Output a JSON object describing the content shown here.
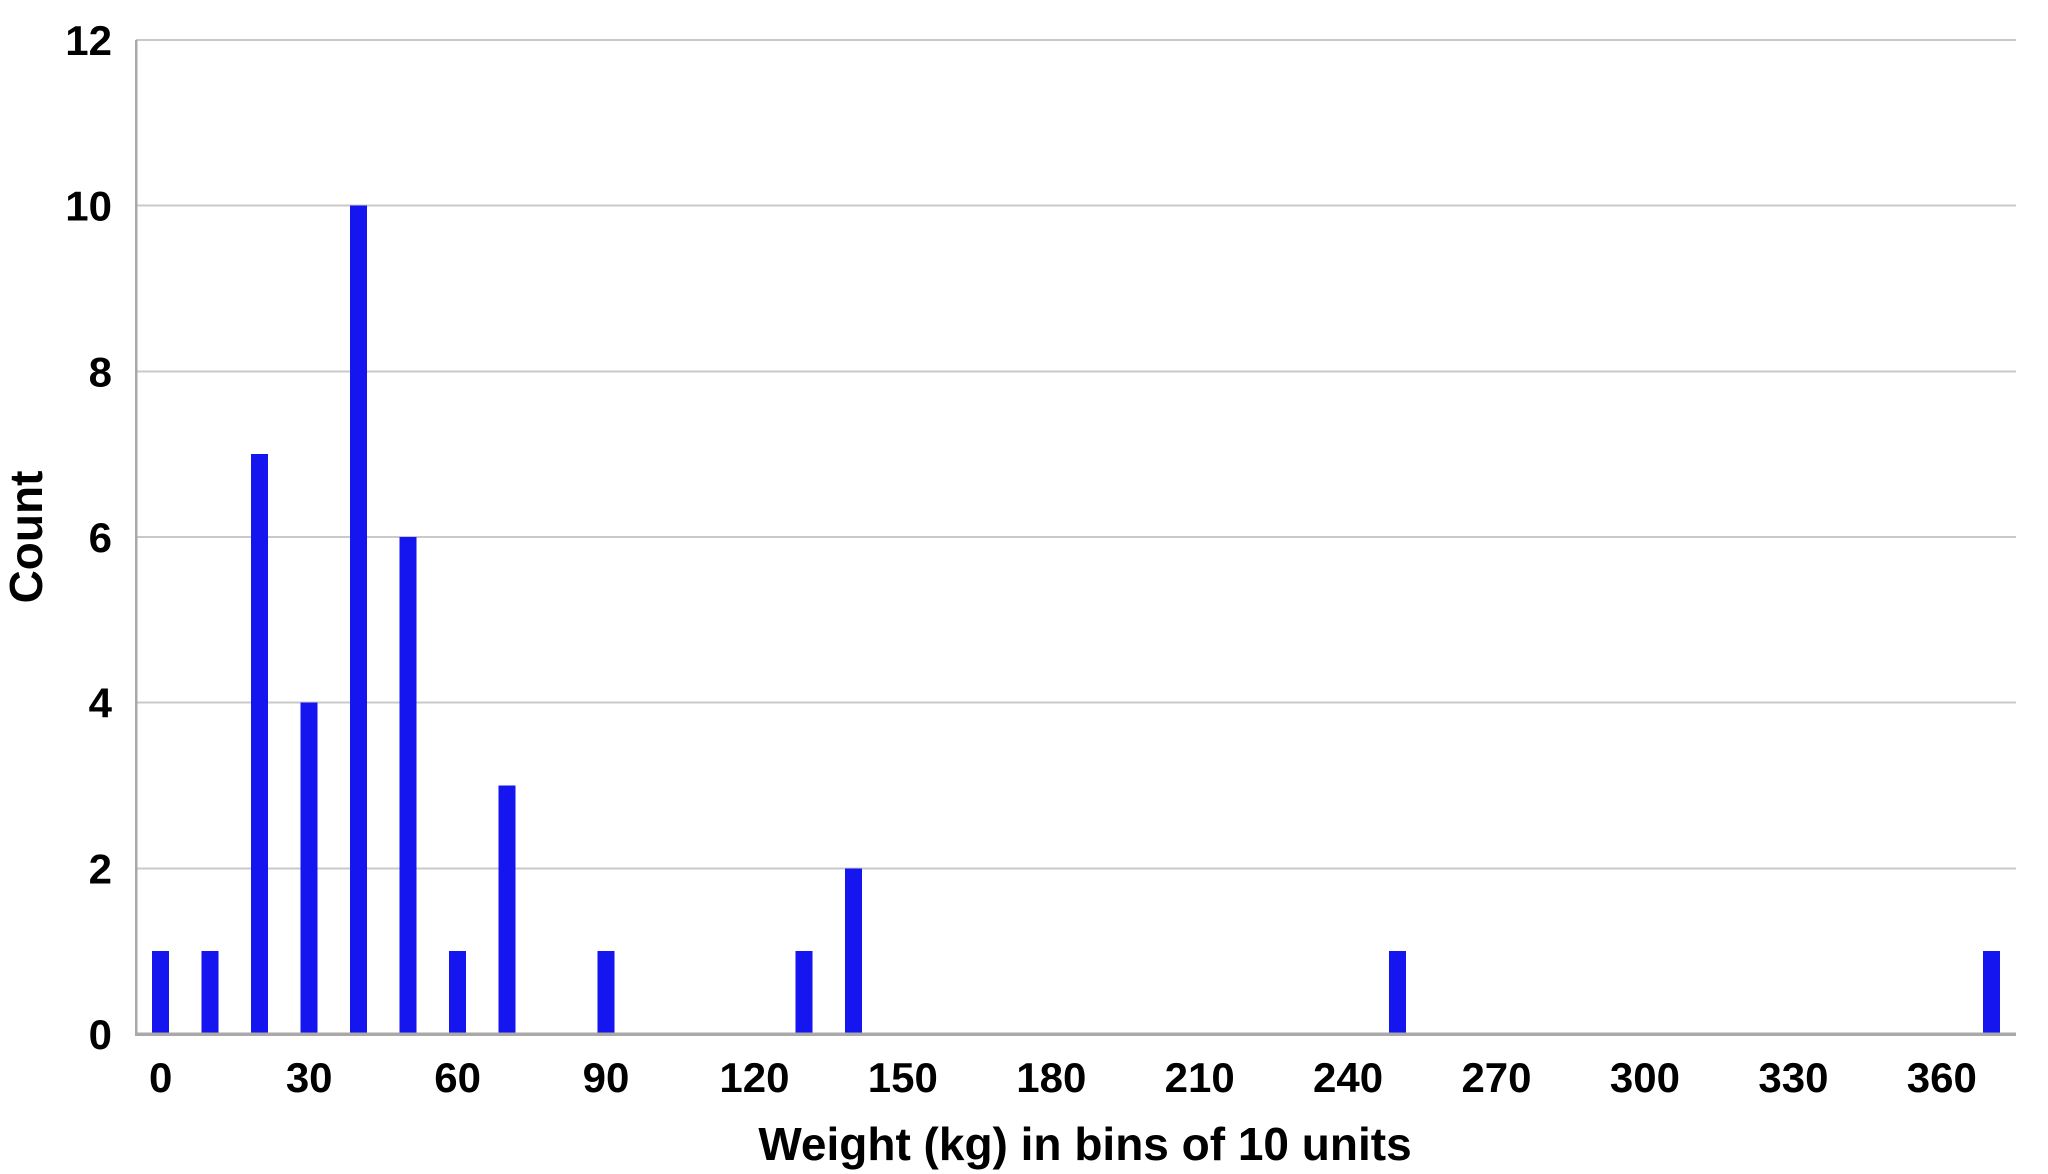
{
  "chart_data": {
    "type": "bar",
    "title": "",
    "xlabel": "Weight (kg) in bins of 10 units",
    "ylabel": "Count",
    "bin_width": 10,
    "bins": [
      0,
      10,
      20,
      30,
      40,
      50,
      60,
      70,
      80,
      90,
      100,
      110,
      120,
      130,
      140,
      150,
      160,
      170,
      180,
      190,
      200,
      210,
      220,
      230,
      240,
      250,
      260,
      270,
      280,
      290,
      300,
      310,
      320,
      330,
      340,
      350,
      360,
      370
    ],
    "counts": [
      1,
      1,
      7,
      4,
      10,
      6,
      1,
      3,
      0,
      1,
      0,
      0,
      0,
      1,
      2,
      0,
      0,
      0,
      0,
      0,
      0,
      0,
      0,
      0,
      0,
      1,
      0,
      0,
      0,
      0,
      0,
      0,
      0,
      0,
      0,
      0,
      0,
      1
    ],
    "x_tick_labels": [
      "0",
      "30",
      "60",
      "90",
      "120",
      "150",
      "180",
      "210",
      "240",
      "270",
      "300",
      "330",
      "360"
    ],
    "x_tick_interval": 30,
    "y_tick_labels": [
      "0",
      "2",
      "4",
      "6",
      "8",
      "10",
      "12"
    ],
    "y_ticks": [
      0,
      2,
      4,
      6,
      8,
      10,
      12
    ],
    "ylim": [
      0,
      12
    ],
    "grid": "horizontal",
    "legend": "none",
    "colors": {
      "bar": "#1515ef",
      "gridline": "#c9c9c9",
      "axis": "#a9a9a9",
      "text": "#000000",
      "background": "#ffffff"
    }
  }
}
